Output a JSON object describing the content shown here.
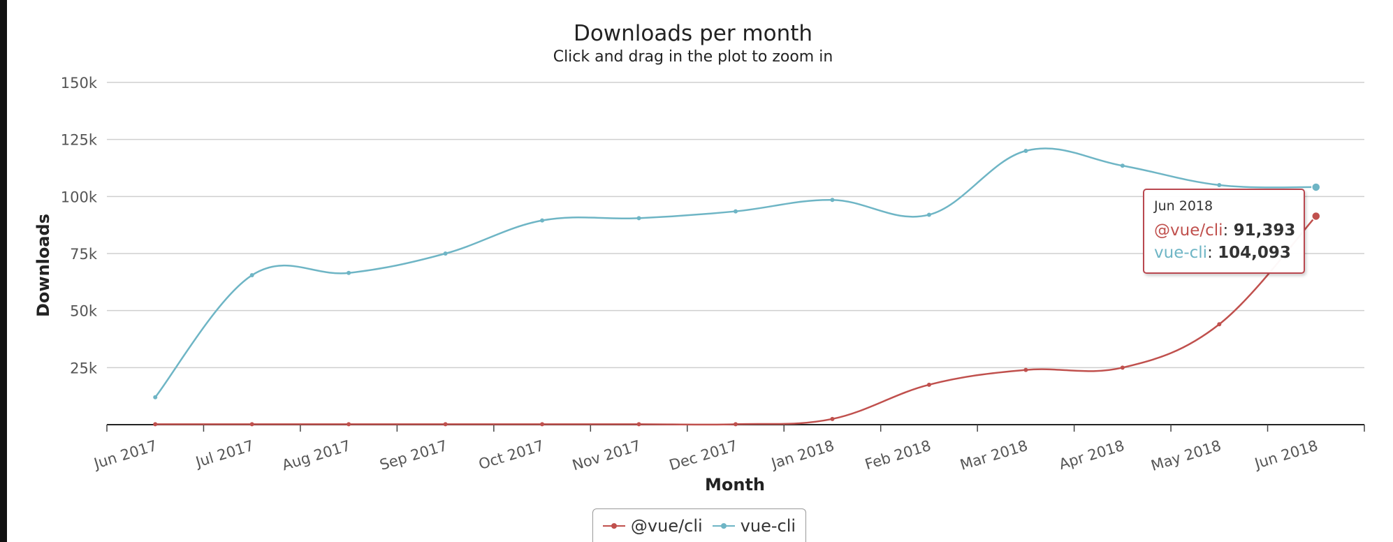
{
  "chart_data": {
    "type": "line",
    "title": "Downloads per month",
    "subtitle": "Click and drag in the plot to zoom in",
    "xlabel": "Month",
    "ylabel": "Downloads",
    "categories": [
      "Jun 2017",
      "Jul 2017",
      "Aug 2017",
      "Sep 2017",
      "Oct 2017",
      "Nov 2017",
      "Dec 2017",
      "Jan 2018",
      "Feb 2018",
      "Mar 2018",
      "Apr 2018",
      "May 2018",
      "Jun 2018"
    ],
    "ylim": [
      0,
      150000
    ],
    "yticks": [
      {
        "value": 25000,
        "label": "25k"
      },
      {
        "value": 50000,
        "label": "50k"
      },
      {
        "value": 75000,
        "label": "75k"
      },
      {
        "value": 100000,
        "label": "100k"
      },
      {
        "value": 125000,
        "label": "125k"
      },
      {
        "value": 150000,
        "label": "150k"
      }
    ],
    "grid": true,
    "legend": "bottom-center",
    "series": [
      {
        "name": "@vue/cli",
        "color": "#c0504d",
        "values": [
          200,
          200,
          200,
          200,
          200,
          200,
          200,
          2500,
          17500,
          24000,
          25000,
          44000,
          91393
        ]
      },
      {
        "name": "vue-cli",
        "color": "#6eb5c5",
        "values": [
          12000,
          65500,
          66500,
          75000,
          89500,
          90500,
          93500,
          98500,
          92000,
          120000,
          113500,
          105000,
          104093
        ]
      }
    ],
    "tooltip": {
      "header": "Jun 2018",
      "rows": [
        {
          "name": "@vue/cli",
          "value": "91,393",
          "color": "#c0504d"
        },
        {
          "name": "vue-cli",
          "value": "104,093",
          "color": "#6eb5c5"
        }
      ]
    }
  }
}
